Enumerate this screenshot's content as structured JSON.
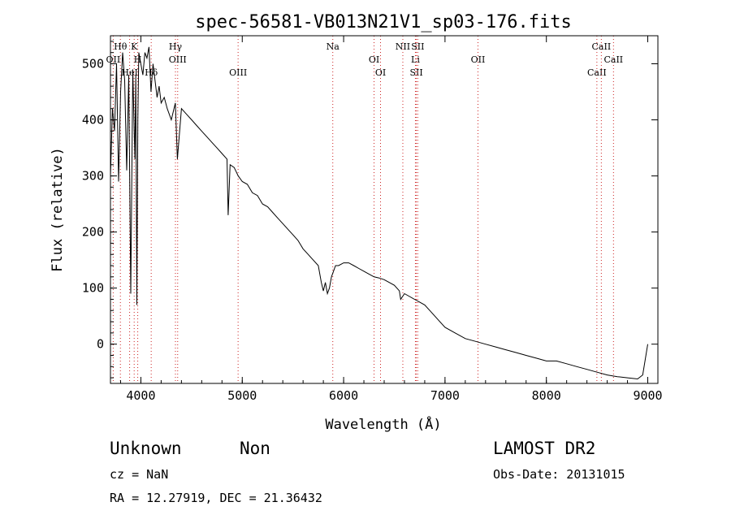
{
  "chart_data": {
    "type": "line",
    "title": "spec-56581-VB013N21V1_sp03-176.fits",
    "xlabel": "Wavelength (Å)",
    "ylabel": "Flux (relative)",
    "xlim": [
      3700,
      9100
    ],
    "ylim": [
      -70,
      550
    ],
    "xticks": [
      4000,
      5000,
      6000,
      7000,
      8000,
      9000
    ],
    "yticks": [
      0,
      100,
      200,
      300,
      400,
      500
    ],
    "grid": false,
    "series": [
      {
        "x": [
          3700,
          3720,
          3740,
          3760,
          3780,
          3800,
          3820,
          3840,
          3860,
          3880,
          3900,
          3920,
          3940,
          3950,
          3960,
          3970,
          3980,
          4000,
          4020,
          4040,
          4060,
          4080,
          4100,
          4120,
          4140,
          4160,
          4180,
          4200,
          4230,
          4260,
          4300,
          4340,
          4360,
          4400,
          4450,
          4500,
          4550,
          4600,
          4650,
          4700,
          4750,
          4800,
          4850,
          4861,
          4880,
          4920,
          4960,
          5000,
          5050,
          5100,
          5150,
          5200,
          5250,
          5300,
          5350,
          5400,
          5450,
          5500,
          5550,
          5600,
          5650,
          5700,
          5750,
          5780,
          5800,
          5820,
          5840,
          5860,
          5880,
          5900,
          5920,
          5950,
          6000,
          6050,
          6100,
          6150,
          6200,
          6250,
          6300,
          6350,
          6400,
          6450,
          6500,
          6550,
          6563,
          6600,
          6650,
          6700,
          6750,
          6800,
          6850,
          6900,
          6950,
          7000,
          7100,
          7200,
          7300,
          7400,
          7500,
          7600,
          7700,
          7800,
          7900,
          8000,
          8100,
          8200,
          8300,
          8400,
          8500,
          8600,
          8700,
          8800,
          8900,
          8950,
          9000
        ],
        "values": [
          300,
          420,
          380,
          500,
          290,
          450,
          520,
          470,
          310,
          480,
          90,
          490,
          330,
          480,
          70,
          400,
          520,
          500,
          480,
          520,
          510,
          530,
          450,
          500,
          470,
          440,
          460,
          430,
          440,
          420,
          400,
          430,
          330,
          420,
          410,
          400,
          390,
          380,
          370,
          360,
          350,
          340,
          330,
          230,
          320,
          315,
          300,
          290,
          285,
          270,
          265,
          250,
          245,
          235,
          225,
          215,
          205,
          195,
          185,
          170,
          160,
          150,
          140,
          110,
          95,
          110,
          90,
          100,
          120,
          130,
          140,
          140,
          145,
          145,
          140,
          135,
          130,
          125,
          120,
          118,
          115,
          110,
          105,
          95,
          80,
          90,
          85,
          80,
          75,
          70,
          60,
          50,
          40,
          30,
          20,
          10,
          5,
          0,
          -5,
          -10,
          -15,
          -20,
          -25,
          -30,
          -30,
          -35,
          -40,
          -45,
          -50,
          -55,
          -58,
          -60,
          -62,
          -55,
          0
        ]
      }
    ],
    "lines": [
      {
        "label": "Hθ",
        "wave": 3798
      },
      {
        "label": "OII",
        "wave": 3727
      },
      {
        "label": "HeI",
        "wave": 3889
      },
      {
        "label": "K",
        "wave": 3934
      },
      {
        "label": "H",
        "wave": 3969
      },
      {
        "label": "Hδ",
        "wave": 4102
      },
      {
        "label": "Hγ",
        "wave": 4341
      },
      {
        "label": "OIII",
        "wave": 4363
      },
      {
        "label": "OIII",
        "wave": 4959
      },
      {
        "label": "Na",
        "wave": 5893
      },
      {
        "label": "OI",
        "wave": 6300
      },
      {
        "label": "OI",
        "wave": 6364
      },
      {
        "label": "NII",
        "wave": 6584
      },
      {
        "label": "Li",
        "wave": 6708
      },
      {
        "label": "SII",
        "wave": 6717
      },
      {
        "label": "SII",
        "wave": 6731
      },
      {
        "label": "OII",
        "wave": 7325
      },
      {
        "label": "CaII",
        "wave": 8498
      },
      {
        "label": "CaII",
        "wave": 8542
      },
      {
        "label": "CaII",
        "wave": 8662
      }
    ]
  },
  "footer": {
    "class_label": "Unknown",
    "subclass_label": "Non",
    "survey": "LAMOST DR2",
    "cz": "cz = NaN",
    "obs_date": "Obs-Date: 20131015",
    "coords": "RA =  12.27919, DEC =  21.36432"
  },
  "colors": {
    "axes": "#000000",
    "spectrum": "#000000",
    "lines": "#cc2222",
    "background": "#ffffff"
  }
}
